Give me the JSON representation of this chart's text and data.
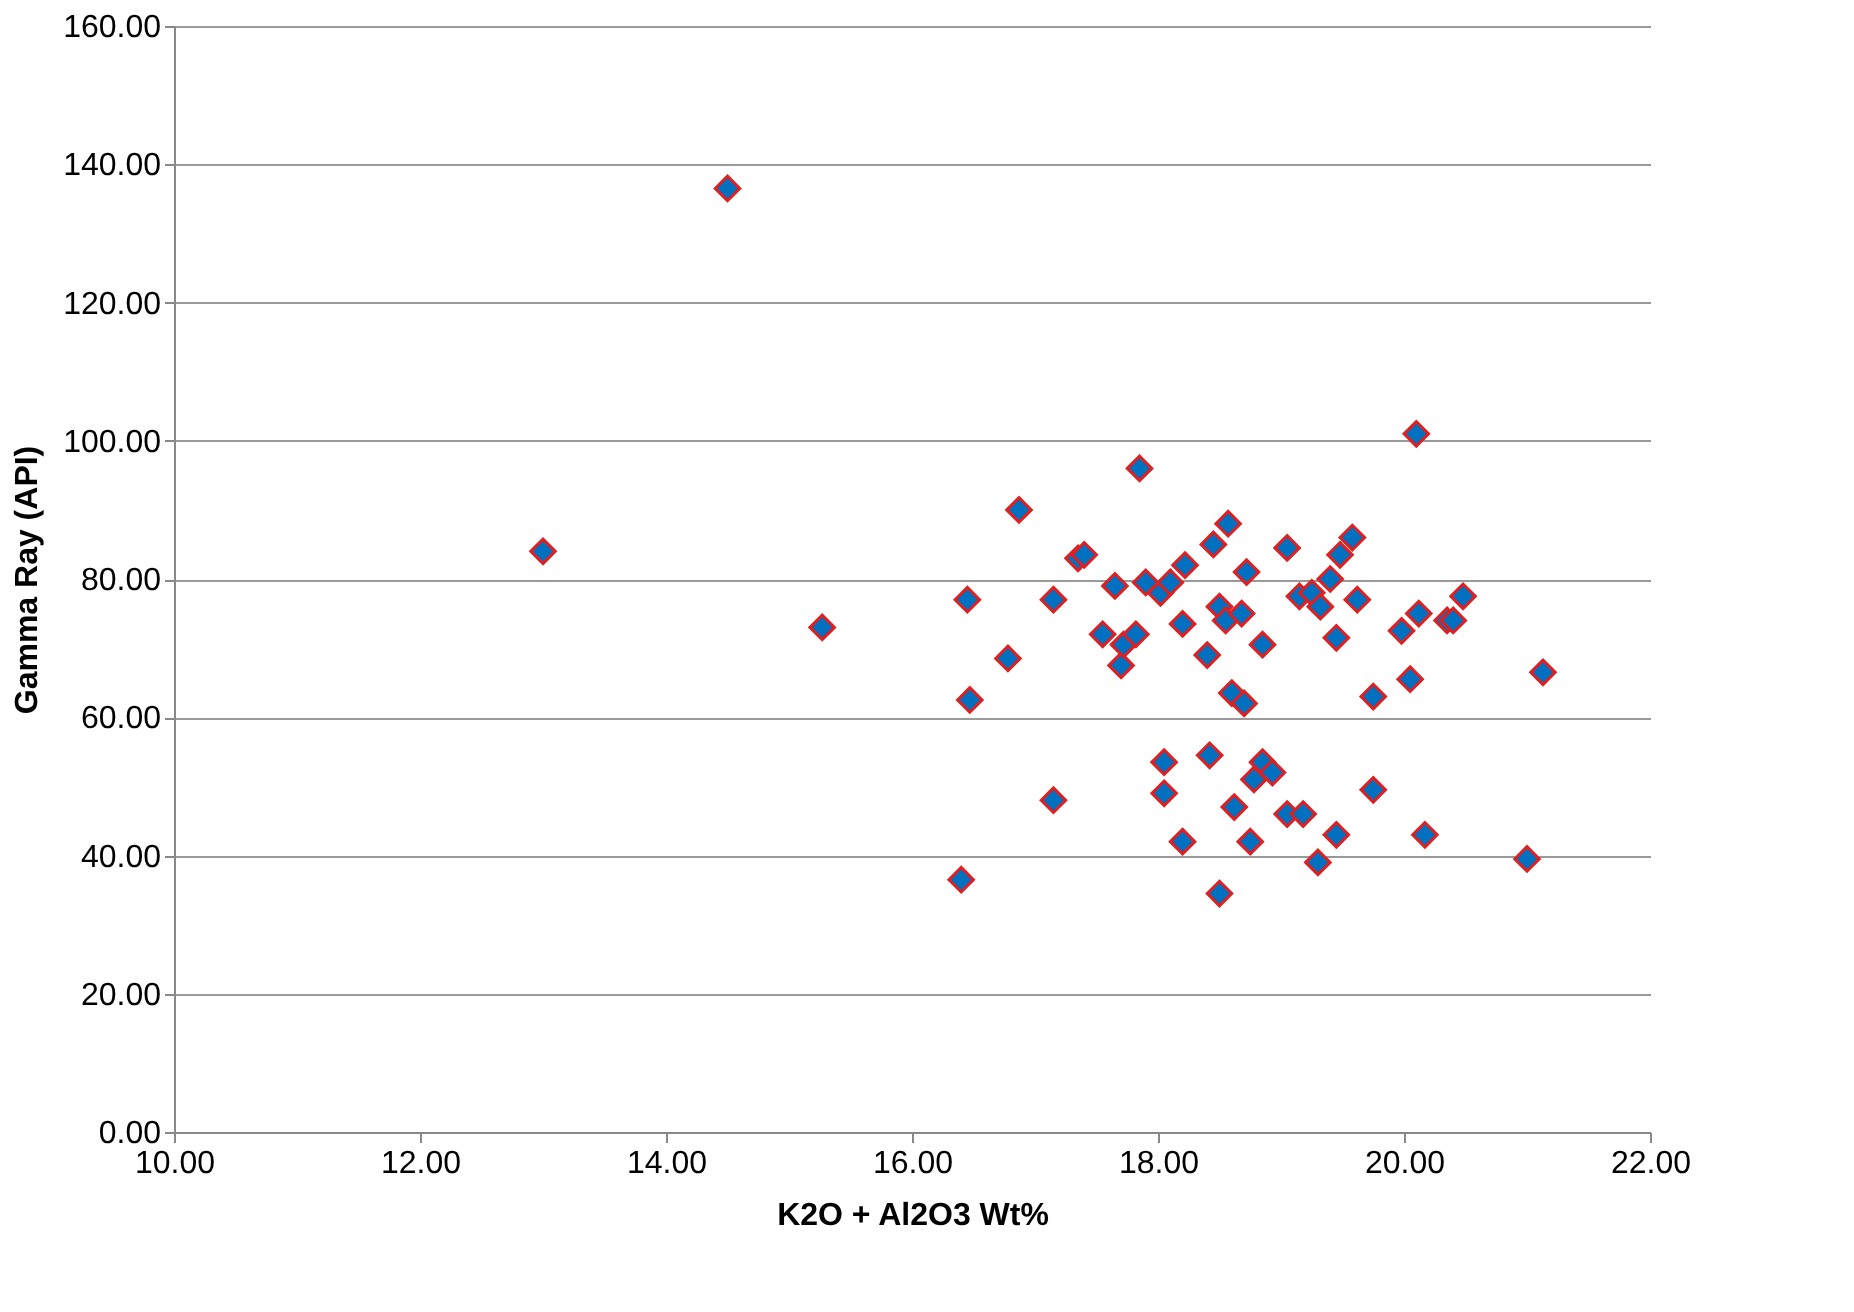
{
  "chart_data": {
    "type": "scatter",
    "xlabel": "K2O + Al2O3 Wt%",
    "ylabel": "Gamma Ray (API)",
    "x": [
      13.0,
      14.5,
      15.27,
      16.45,
      16.47,
      16.4,
      16.78,
      16.87,
      17.15,
      17.15,
      17.35,
      17.4,
      17.55,
      17.65,
      17.7,
      17.72,
      17.82,
      17.85,
      17.9,
      18.02,
      18.05,
      18.05,
      18.1,
      18.2,
      18.2,
      18.22,
      18.4,
      18.42,
      18.45,
      18.5,
      18.5,
      18.55,
      18.57,
      18.6,
      18.62,
      18.68,
      18.7,
      18.72,
      18.75,
      18.78,
      18.85,
      18.85,
      18.93,
      19.05,
      19.05,
      19.15,
      19.18,
      19.25,
      19.3,
      19.32,
      19.4,
      19.45,
      19.48,
      19.45,
      19.58,
      19.62,
      19.75,
      19.75,
      19.98,
      20.05,
      20.1,
      20.12,
      20.17,
      20.35,
      20.4,
      20.48,
      21.0,
      21.13
    ],
    "series": [
      {
        "color": "#0070c0",
        "values": [
          84,
          136.5,
          73,
          77,
          62.5,
          36.5,
          68.5,
          90,
          48,
          77,
          83,
          83.5,
          72,
          79,
          67.5,
          70.5,
          72,
          96,
          79.5,
          78,
          53.5,
          49,
          79.5,
          73.5,
          42,
          82,
          69,
          54.5,
          85,
          76,
          34.5,
          74,
          88,
          63.5,
          47,
          75,
          62,
          81,
          42,
          51,
          70.5,
          53.5,
          52,
          84.5,
          46,
          77.5,
          46,
          78,
          39,
          76,
          80,
          71.5,
          83.5,
          43,
          86,
          77,
          63,
          49.5,
          72.5,
          65.5,
          101,
          75,
          43,
          74,
          74,
          77.5,
          39.5,
          66.5
        ]
      }
    ],
    "marker": "diamond",
    "xlim": [
      10,
      22
    ],
    "ylim": [
      0,
      160
    ],
    "xticks": [
      {
        "value": 10,
        "label": "10.00"
      },
      {
        "value": 12,
        "label": "12.00"
      },
      {
        "value": 14,
        "label": "14.00"
      },
      {
        "value": 16,
        "label": "16.00"
      },
      {
        "value": 18,
        "label": "18.00"
      },
      {
        "value": 20,
        "label": "20.00"
      },
      {
        "value": 22,
        "label": "22.00"
      }
    ],
    "yticks": [
      {
        "value": 0,
        "label": "0.00"
      },
      {
        "value": 20,
        "label": "20.00"
      },
      {
        "value": 40,
        "label": "40.00"
      },
      {
        "value": 60,
        "label": "60.00"
      },
      {
        "value": 80,
        "label": "80.00"
      },
      {
        "value": 100,
        "label": "100.00"
      },
      {
        "value": 120,
        "label": "120.00"
      },
      {
        "value": 140,
        "label": "140.00"
      },
      {
        "value": 160,
        "label": "160.00"
      }
    ],
    "grid": "y",
    "legend": false
  }
}
